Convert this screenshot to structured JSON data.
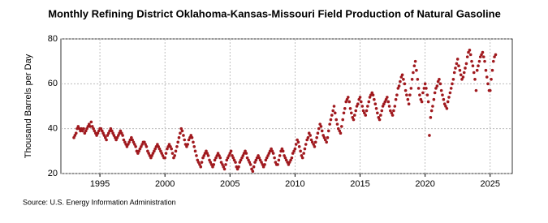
{
  "chart_data": {
    "type": "scatter",
    "title": "Monthly Refining District Oklahoma-Kansas-Missouri Field Production of Natural Gasoline",
    "y_label": "Thousand Barrels per Day",
    "source": "Source: U.S. Energy Information Administration",
    "color": "#a0191e",
    "grid": true,
    "xlim": [
      1992,
      2026.7
    ],
    "ylim": [
      20,
      80
    ],
    "xticks": [
      1995,
      2000,
      2005,
      2010,
      2015,
      2020,
      2025
    ],
    "yticks": [
      20,
      40,
      60,
      80
    ],
    "x": [
      1993,
      1993.08,
      1993.17,
      1993.25,
      1993.33,
      1993.42,
      1993.5,
      1993.58,
      1993.67,
      1993.75,
      1993.83,
      1993.92,
      1994,
      1994.08,
      1994.17,
      1994.25,
      1994.33,
      1994.42,
      1994.5,
      1994.58,
      1994.67,
      1994.75,
      1994.83,
      1994.92,
      1995,
      1995.08,
      1995.17,
      1995.25,
      1995.33,
      1995.42,
      1995.5,
      1995.58,
      1995.67,
      1995.75,
      1995.83,
      1995.92,
      1996,
      1996.08,
      1996.17,
      1996.25,
      1996.33,
      1996.42,
      1996.5,
      1996.58,
      1996.67,
      1996.75,
      1996.83,
      1996.92,
      1997,
      1997.08,
      1997.17,
      1997.25,
      1997.33,
      1997.42,
      1997.5,
      1997.58,
      1997.67,
      1997.75,
      1997.83,
      1997.92,
      1998,
      1998.08,
      1998.17,
      1998.25,
      1998.33,
      1998.42,
      1998.5,
      1998.58,
      1998.67,
      1998.75,
      1998.83,
      1998.92,
      1999,
      1999.08,
      1999.17,
      1999.25,
      1999.33,
      1999.42,
      1999.5,
      1999.58,
      1999.67,
      1999.75,
      1999.83,
      1999.92,
      2000,
      2000.08,
      2000.17,
      2000.25,
      2000.33,
      2000.42,
      2000.5,
      2000.58,
      2000.67,
      2000.75,
      2000.83,
      2000.92,
      2001,
      2001.08,
      2001.17,
      2001.25,
      2001.33,
      2001.42,
      2001.5,
      2001.58,
      2001.67,
      2001.75,
      2001.83,
      2001.92,
      2002,
      2002.08,
      2002.17,
      2002.25,
      2002.33,
      2002.42,
      2002.5,
      2002.58,
      2002.67,
      2002.75,
      2002.83,
      2002.92,
      2003,
      2003.08,
      2003.17,
      2003.25,
      2003.33,
      2003.42,
      2003.5,
      2003.58,
      2003.67,
      2003.75,
      2003.83,
      2003.92,
      2004,
      2004.08,
      2004.17,
      2004.25,
      2004.33,
      2004.42,
      2004.5,
      2004.58,
      2004.67,
      2004.75,
      2004.83,
      2004.92,
      2005,
      2005.08,
      2005.17,
      2005.25,
      2005.33,
      2005.42,
      2005.5,
      2005.58,
      2005.67,
      2005.75,
      2005.83,
      2005.92,
      2006,
      2006.08,
      2006.17,
      2006.25,
      2006.33,
      2006.42,
      2006.5,
      2006.58,
      2006.67,
      2006.75,
      2006.83,
      2006.92,
      2007,
      2007.08,
      2007.17,
      2007.25,
      2007.33,
      2007.42,
      2007.5,
      2007.58,
      2007.67,
      2007.75,
      2007.83,
      2007.92,
      2008,
      2008.08,
      2008.17,
      2008.25,
      2008.33,
      2008.42,
      2008.5,
      2008.58,
      2008.67,
      2008.75,
      2008.83,
      2008.92,
      2009,
      2009.08,
      2009.17,
      2009.25,
      2009.33,
      2009.42,
      2009.5,
      2009.58,
      2009.67,
      2009.75,
      2009.83,
      2009.92,
      2010,
      2010.08,
      2010.17,
      2010.25,
      2010.33,
      2010.42,
      2010.5,
      2010.58,
      2010.67,
      2010.75,
      2010.83,
      2010.92,
      2011,
      2011.08,
      2011.17,
      2011.25,
      2011.33,
      2011.42,
      2011.5,
      2011.58,
      2011.67,
      2011.75,
      2011.83,
      2011.92,
      2012,
      2012.08,
      2012.17,
      2012.25,
      2012.33,
      2012.42,
      2012.5,
      2012.58,
      2012.67,
      2012.75,
      2012.83,
      2012.92,
      2013,
      2013.08,
      2013.17,
      2013.25,
      2013.33,
      2013.42,
      2013.5,
      2013.58,
      2013.67,
      2013.75,
      2013.83,
      2013.92,
      2014,
      2014.08,
      2014.17,
      2014.25,
      2014.33,
      2014.42,
      2014.5,
      2014.58,
      2014.67,
      2014.75,
      2014.83,
      2014.92,
      2015,
      2015.08,
      2015.17,
      2015.25,
      2015.33,
      2015.42,
      2015.5,
      2015.58,
      2015.67,
      2015.75,
      2015.83,
      2015.92,
      2016,
      2016.08,
      2016.17,
      2016.25,
      2016.33,
      2016.42,
      2016.5,
      2016.58,
      2016.67,
      2016.75,
      2016.83,
      2016.92,
      2017,
      2017.08,
      2017.17,
      2017.25,
      2017.33,
      2017.42,
      2017.5,
      2017.58,
      2017.67,
      2017.75,
      2017.83,
      2017.92,
      2018,
      2018.08,
      2018.17,
      2018.25,
      2018.33,
      2018.42,
      2018.5,
      2018.58,
      2018.67,
      2018.75,
      2018.83,
      2018.92,
      2019,
      2019.08,
      2019.17,
      2019.25,
      2019.33,
      2019.42,
      2019.5,
      2019.58,
      2019.67,
      2019.75,
      2019.83,
      2019.92,
      2020,
      2020.08,
      2020.17,
      2020.25,
      2020.33,
      2020.42,
      2020.5,
      2020.58,
      2020.67,
      2020.75,
      2020.83,
      2020.92,
      2021,
      2021.08,
      2021.17,
      2021.25,
      2021.33,
      2021.42,
      2021.5,
      2021.58,
      2021.67,
      2021.75,
      2021.83,
      2021.92,
      2022,
      2022.08,
      2022.17,
      2022.25,
      2022.33,
      2022.42,
      2022.5,
      2022.58,
      2022.67,
      2022.75,
      2022.83,
      2022.92,
      2023,
      2023.08,
      2023.17,
      2023.25,
      2023.33,
      2023.42,
      2023.5,
      2023.58,
      2023.67,
      2023.75,
      2023.83,
      2023.92,
      2024,
      2024.08,
      2024.17,
      2024.25,
      2024.33,
      2024.42,
      2024.5,
      2024.58,
      2024.67,
      2024.75,
      2024.83,
      2024.92,
      2025,
      2025.08,
      2025.17,
      2025.25,
      2025.33,
      2025.42
    ],
    "values": [
      36,
      37,
      38,
      40,
      41,
      40,
      39,
      40,
      39,
      40,
      38,
      39,
      40,
      41,
      42,
      41,
      43,
      41,
      40,
      39,
      38,
      37,
      38,
      39,
      40,
      40,
      39,
      38,
      37,
      36,
      35,
      37,
      38,
      39,
      40,
      39,
      38,
      37,
      36,
      35,
      36,
      37,
      38,
      39,
      38,
      37,
      35,
      34,
      33,
      32,
      33,
      34,
      35,
      36,
      35,
      34,
      33,
      32,
      30,
      29,
      30,
      31,
      32,
      33,
      34,
      34,
      33,
      32,
      30,
      29,
      28,
      27,
      28,
      29,
      30,
      31,
      32,
      33,
      32,
      31,
      30,
      29,
      28,
      27,
      27,
      29,
      31,
      32,
      33,
      32,
      31,
      29,
      27,
      28,
      30,
      32,
      34,
      36,
      38,
      40,
      39,
      37,
      35,
      33,
      32,
      33,
      35,
      36,
      37,
      36,
      34,
      32,
      30,
      28,
      26,
      25,
      24,
      23,
      25,
      27,
      28,
      29,
      30,
      29,
      28,
      26,
      25,
      24,
      23,
      24,
      26,
      27,
      28,
      29,
      28,
      27,
      25,
      24,
      23,
      22,
      24,
      26,
      27,
      28,
      29,
      30,
      28,
      27,
      26,
      25,
      23,
      22,
      23,
      25,
      26,
      27,
      28,
      29,
      30,
      29,
      27,
      26,
      25,
      24,
      22,
      21,
      23,
      25,
      26,
      27,
      28,
      27,
      26,
      25,
      24,
      23,
      24,
      26,
      27,
      28,
      29,
      30,
      31,
      30,
      29,
      27,
      25,
      24,
      24,
      26,
      28,
      30,
      31,
      30,
      28,
      27,
      26,
      25,
      24,
      25,
      26,
      27,
      29,
      30,
      31,
      33,
      35,
      34,
      32,
      30,
      28,
      27,
      29,
      31,
      33,
      35,
      36,
      38,
      37,
      35,
      34,
      33,
      32,
      34,
      36,
      38,
      40,
      42,
      41,
      39,
      37,
      36,
      35,
      34,
      36,
      39,
      42,
      44,
      46,
      48,
      50,
      47,
      44,
      42,
      40,
      39,
      38,
      41,
      44,
      47,
      49,
      52,
      53,
      54,
      52,
      49,
      47,
      45,
      44,
      46,
      48,
      50,
      51,
      53,
      54,
      52,
      50,
      48,
      47,
      46,
      48,
      50,
      52,
      54,
      55,
      56,
      55,
      53,
      51,
      49,
      47,
      45,
      44,
      46,
      48,
      50,
      51,
      52,
      53,
      54,
      52,
      50,
      48,
      47,
      46,
      48,
      50,
      53,
      55,
      58,
      59,
      61,
      63,
      64,
      62,
      60,
      57,
      55,
      53,
      51,
      55,
      58,
      62,
      65,
      68,
      70,
      66,
      62,
      58,
      55,
      53,
      52,
      56,
      58,
      60,
      58,
      55,
      52,
      37,
      45,
      48,
      50,
      53,
      56,
      58,
      59,
      61,
      62,
      60,
      57,
      55,
      53,
      51,
      50,
      49,
      52,
      54,
      56,
      58,
      60,
      62,
      65,
      67,
      69,
      71,
      68,
      66,
      64,
      62,
      63,
      65,
      67,
      69,
      72,
      74,
      75,
      73,
      70,
      68,
      65,
      62,
      57,
      66,
      68,
      70,
      72,
      73,
      74,
      72,
      70,
      66,
      63,
      60,
      57,
      57,
      62,
      66,
      70,
      72,
      73
    ]
  }
}
